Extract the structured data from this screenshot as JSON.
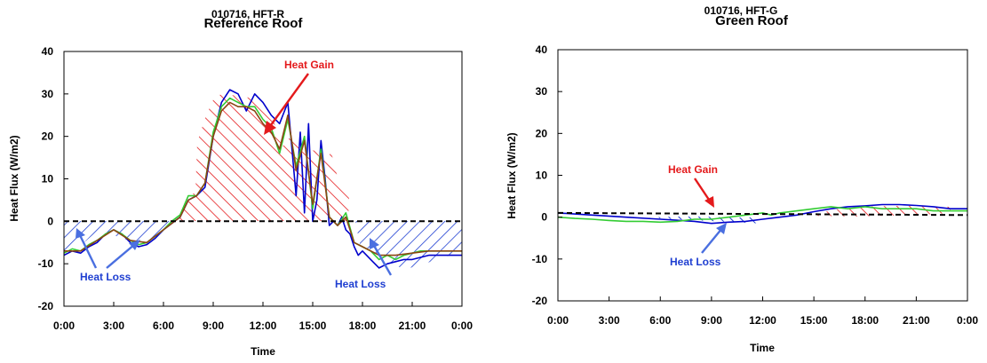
{
  "chart_data": [
    {
      "type": "line",
      "id": "left",
      "title": "Reference Roof",
      "subtitle": "010716, HFT-R",
      "xlabel": "Time",
      "ylabel": "Heat Flux (W/m2)",
      "ylim": [
        -20,
        40
      ],
      "yticks": [
        "-20",
        "-10",
        "0",
        "10",
        "20",
        "30",
        "40"
      ],
      "xlim": [
        0,
        24
      ],
      "xticks": [
        "0:00",
        "3:00",
        "6:00",
        "9:00",
        "12:00",
        "15:00",
        "18:00",
        "21:00",
        "0:00"
      ],
      "grid": false,
      "annotations": [
        {
          "label": "Heat Gain",
          "color": "#e41a1c"
        },
        {
          "label": "Heat Loss",
          "color": "#1f3fd1"
        },
        {
          "label": "Heat Loss",
          "color": "#1f3fd1"
        }
      ],
      "series": [
        {
          "color": "#0000cc",
          "x": [
            0,
            0.5,
            1,
            1.5,
            2,
            2.5,
            3,
            3.5,
            4,
            4.5,
            5,
            5.5,
            6,
            6.5,
            7,
            7.5,
            8,
            8.5,
            9,
            9.5,
            10,
            10.5,
            11,
            11.5,
            12,
            12.5,
            13,
            13.5,
            14,
            14.25,
            14.5,
            14.75,
            15,
            15.25,
            15.5,
            15.75,
            16,
            16.25,
            16.5,
            16.75,
            17,
            17.25,
            17.5,
            17.75,
            18,
            18.5,
            19,
            19.5,
            20,
            20.5,
            21,
            21.5,
            22,
            22.5,
            23,
            23.5,
            24
          ],
          "y": [
            -8,
            -7,
            -7.5,
            -6,
            -5,
            -3,
            -2,
            -3,
            -5,
            -6,
            -5.5,
            -4,
            -2,
            -0.5,
            1,
            5,
            6,
            8,
            20,
            28,
            31,
            30,
            26,
            30,
            28,
            25,
            23,
            28,
            6,
            21,
            2,
            23,
            0,
            5,
            19,
            10,
            -1,
            0,
            -1,
            1,
            -2,
            -3,
            -6,
            -8,
            -7,
            -9,
            -11,
            -10,
            -9.5,
            -9,
            -9,
            -8.5,
            -8,
            -8,
            -8,
            -8,
            -8
          ]
        },
        {
          "color": "#33cc33",
          "x": [
            0,
            0.5,
            1,
            1.5,
            2,
            2.5,
            3,
            3.5,
            4,
            4.5,
            5,
            5.5,
            6,
            6.5,
            7,
            7.5,
            8,
            8.5,
            9,
            9.5,
            10,
            10.5,
            11,
            11.5,
            12,
            12.5,
            13,
            13.5,
            14,
            14.5,
            15,
            15.5,
            16,
            16.5,
            17,
            17.5,
            18,
            18.5,
            19,
            19.5,
            20,
            20.5,
            21,
            21.5,
            22,
            22.5,
            23,
            23.5,
            24
          ],
          "y": [
            -7.5,
            -6.5,
            -7,
            -5.5,
            -4.5,
            -3,
            -2,
            -3,
            -4.5,
            -5.5,
            -5,
            -3.5,
            -2,
            0,
            1.5,
            6,
            6,
            9,
            21,
            27,
            29,
            28,
            27,
            27,
            24,
            22,
            16,
            24,
            13,
            20,
            3,
            17,
            1,
            -1,
            2,
            -5,
            -6,
            -7,
            -9,
            -8,
            -9,
            -8,
            -7.5,
            -7,
            -7,
            -7,
            -7,
            -7,
            -7
          ]
        },
        {
          "color": "#8b4513",
          "x": [
            0,
            1,
            2,
            3,
            4,
            5,
            6,
            7,
            7.5,
            8,
            8.5,
            9,
            9.5,
            10,
            10.5,
            11,
            11.5,
            12,
            12.5,
            13,
            13.5,
            14,
            14.5,
            15,
            15.5,
            16,
            16.5,
            17,
            17.5,
            18,
            19,
            20,
            21,
            22,
            23,
            24
          ],
          "y": [
            -7,
            -7,
            -4.5,
            -2,
            -4.5,
            -5,
            -2,
            1,
            5,
            6,
            9,
            20,
            26,
            28,
            27,
            27,
            26,
            23,
            21,
            17,
            25,
            12,
            19,
            4,
            16,
            1,
            -1,
            1,
            -5,
            -6,
            -8,
            -8,
            -7.5,
            -7,
            -7,
            -7
          ]
        },
        {
          "color": "#000000",
          "dash": true,
          "x": [
            0,
            24
          ],
          "y": [
            0,
            0
          ]
        }
      ]
    },
    {
      "type": "line",
      "id": "right",
      "title": "Green Roof",
      "subtitle": "010716, HFT-G",
      "xlabel": "Time",
      "ylabel": "Heat Flux (W/m2)",
      "ylim": [
        -20,
        40
      ],
      "yticks": [
        "-20",
        "-10",
        "0",
        "10",
        "20",
        "30",
        "40"
      ],
      "xlim": [
        0,
        24
      ],
      "xticks": [
        "0:00",
        "3:00",
        "6:00",
        "9:00",
        "12:00",
        "15:00",
        "18:00",
        "21:00",
        "0:00"
      ],
      "grid": false,
      "annotations": [
        {
          "label": "Heat Gain",
          "color": "#e41a1c"
        },
        {
          "label": "Heat Loss",
          "color": "#1f3fd1"
        }
      ],
      "series": [
        {
          "color": "#0000cc",
          "x": [
            0,
            2,
            4,
            6,
            8,
            9,
            10,
            11,
            12,
            13,
            14,
            15,
            16,
            17,
            18,
            19,
            20,
            21,
            22,
            23,
            24
          ],
          "y": [
            1,
            0.5,
            0,
            -0.5,
            -1,
            -1.5,
            -1.2,
            -1,
            -0.5,
            0,
            0.5,
            1.3,
            2,
            2.5,
            2.7,
            3,
            3,
            2.8,
            2.5,
            2,
            2
          ]
        },
        {
          "color": "#33cc33",
          "x": [
            0,
            1,
            2,
            3,
            4,
            5,
            6,
            7,
            8,
            9,
            10,
            11,
            12,
            12.5,
            13,
            14,
            15,
            16,
            17,
            18,
            19,
            20,
            21,
            22,
            23,
            24
          ],
          "y": [
            0,
            -0.3,
            -0.5,
            -0.8,
            -1,
            -1,
            -1.2,
            -1,
            -0.5,
            -0.5,
            0,
            0.5,
            1,
            0.5,
            1,
            1.5,
            2,
            2.5,
            2,
            2.5,
            2,
            2,
            2,
            1.5,
            1.5,
            1.5
          ]
        },
        {
          "color": "#000000",
          "dash": true,
          "x": [
            0,
            24
          ],
          "y": [
            1,
            0.5
          ]
        }
      ]
    }
  ]
}
